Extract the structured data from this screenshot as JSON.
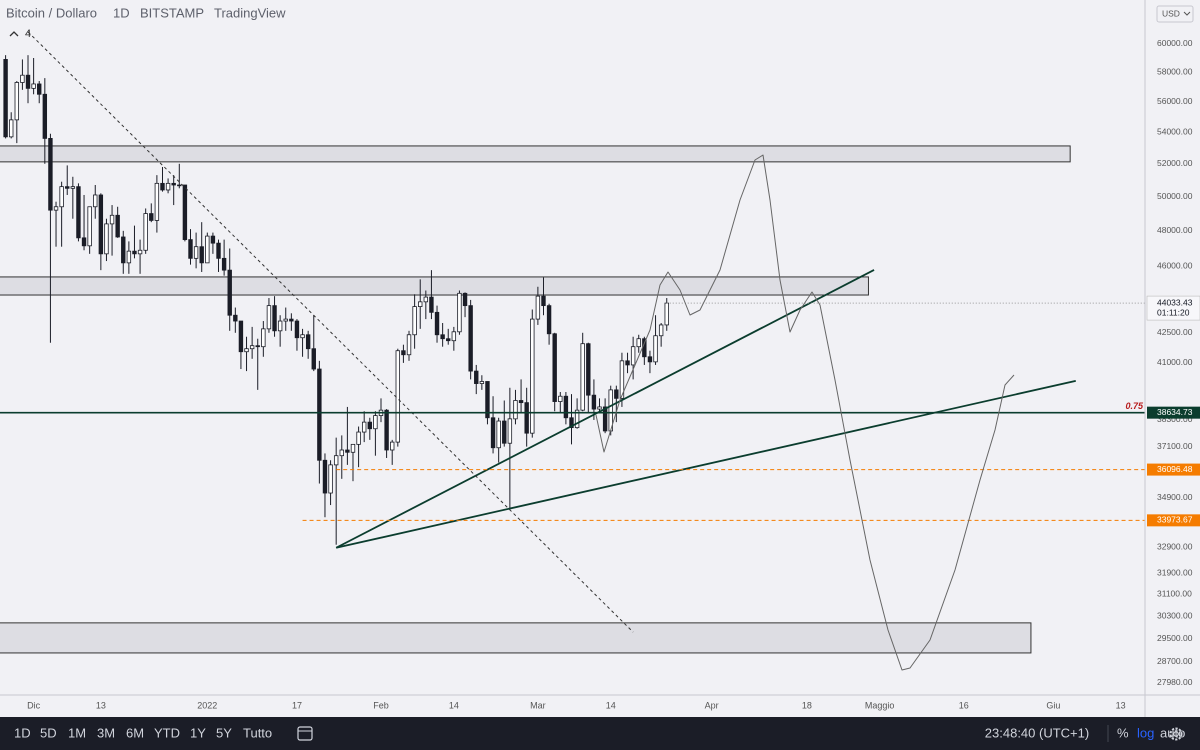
{
  "chart_data": {
    "type": "candlestick",
    "title": "Bitcoin / Dollaro",
    "interval": "1D",
    "exchange": "BITSTAMP",
    "source": "TradingView",
    "collapsed_indicators": "4",
    "y_unit": "USD",
    "log": true,
    "grid": false,
    "up_color": "#ffffff",
    "down_color": "#1b1d27",
    "wick_color": "#1b1d27",
    "xlim": [
      "2021-11-25",
      "2022-06-17"
    ],
    "ylim": [
      27580,
      63230
    ],
    "xticks": [
      {
        "value": "2021-12-01",
        "label": "Dic"
      },
      {
        "value": "2021-12-13",
        "label": "13"
      },
      {
        "value": "2022-01-01",
        "label": "2022"
      },
      {
        "value": "2022-01-17",
        "label": "17"
      },
      {
        "value": "2022-02-01",
        "label": "Feb"
      },
      {
        "value": "2022-02-14",
        "label": "14"
      },
      {
        "value": "2022-03-01",
        "label": "Mar"
      },
      {
        "value": "2022-03-14",
        "label": "14"
      },
      {
        "value": "2022-04-01",
        "label": "Apr"
      },
      {
        "value": "2022-04-18",
        "label": "18"
      },
      {
        "value": "2022-05-01",
        "label": "Maggio"
      },
      {
        "value": "2022-05-16",
        "label": "16"
      },
      {
        "value": "2022-06-01",
        "label": "Giu"
      },
      {
        "value": "2022-06-13",
        "label": "13"
      }
    ],
    "yticks": [
      {
        "value": 60000,
        "label": "60000.00"
      },
      {
        "value": 58000,
        "label": "58000.00"
      },
      {
        "value": 56000,
        "label": "56000.00"
      },
      {
        "value": 54000,
        "label": "54000.00"
      },
      {
        "value": 52000,
        "label": "52000.00"
      },
      {
        "value": 50000,
        "label": "50000.00"
      },
      {
        "value": 48000,
        "label": "48000.00"
      },
      {
        "value": 46000,
        "label": "46000.00"
      },
      {
        "value": 42500,
        "label": "42500.00"
      },
      {
        "value": 41000,
        "label": "41000.00"
      },
      {
        "value": 38300,
        "label": "38300.00"
      },
      {
        "value": 37100,
        "label": "37100.00"
      },
      {
        "value": 34900,
        "label": "34900.00"
      },
      {
        "value": 32900,
        "label": "32900.00"
      },
      {
        "value": 31900,
        "label": "31900.00"
      },
      {
        "value": 31100,
        "label": "31100.00"
      },
      {
        "value": 30300,
        "label": "30300.00"
      },
      {
        "value": 29500,
        "label": "29500.00"
      },
      {
        "value": 28700,
        "label": "28700.00"
      },
      {
        "value": 27980,
        "label": "27980.00"
      }
    ],
    "x": [
      "2021-11-26",
      "2021-11-27",
      "2021-11-28",
      "2021-11-29",
      "2021-11-30",
      "2021-12-01",
      "2021-12-02",
      "2021-12-03",
      "2021-12-04",
      "2021-12-05",
      "2021-12-06",
      "2021-12-07",
      "2021-12-08",
      "2021-12-09",
      "2021-12-10",
      "2021-12-11",
      "2021-12-12",
      "2021-12-13",
      "2021-12-14",
      "2021-12-15",
      "2021-12-16",
      "2021-12-17",
      "2021-12-18",
      "2021-12-19",
      "2021-12-20",
      "2021-12-21",
      "2021-12-22",
      "2021-12-23",
      "2021-12-24",
      "2021-12-25",
      "2021-12-26",
      "2021-12-27",
      "2021-12-28",
      "2021-12-29",
      "2021-12-30",
      "2021-12-31",
      "2022-01-01",
      "2022-01-02",
      "2022-01-03",
      "2022-01-04",
      "2022-01-05",
      "2022-01-06",
      "2022-01-07",
      "2022-01-08",
      "2022-01-09",
      "2022-01-10",
      "2022-01-11",
      "2022-01-12",
      "2022-01-13",
      "2022-01-14",
      "2022-01-15",
      "2022-01-16",
      "2022-01-17",
      "2022-01-18",
      "2022-01-19",
      "2022-01-20",
      "2022-01-21",
      "2022-01-22",
      "2022-01-23",
      "2022-01-24",
      "2022-01-25",
      "2022-01-26",
      "2022-01-27",
      "2022-01-28",
      "2022-01-29",
      "2022-01-30",
      "2022-01-31",
      "2022-02-01",
      "2022-02-02",
      "2022-02-03",
      "2022-02-04",
      "2022-02-05",
      "2022-02-06",
      "2022-02-07",
      "2022-02-08",
      "2022-02-09",
      "2022-02-10",
      "2022-02-11",
      "2022-02-12",
      "2022-02-13",
      "2022-02-14",
      "2022-02-15",
      "2022-02-16",
      "2022-02-17",
      "2022-02-18",
      "2022-02-19",
      "2022-02-20",
      "2022-02-21",
      "2022-02-22",
      "2022-02-23",
      "2022-02-24",
      "2022-02-25",
      "2022-02-26",
      "2022-02-27",
      "2022-02-28",
      "2022-03-01",
      "2022-03-02",
      "2022-03-03",
      "2022-03-04",
      "2022-03-05",
      "2022-03-06",
      "2022-03-07",
      "2022-03-08",
      "2022-03-09",
      "2022-03-10",
      "2022-03-11",
      "2022-03-12",
      "2022-03-13",
      "2022-03-14",
      "2022-03-15",
      "2022-03-16",
      "2022-03-17",
      "2022-03-18",
      "2022-03-19",
      "2022-03-20",
      "2022-03-21",
      "2022-03-22",
      "2022-03-23",
      "2022-03-24"
    ],
    "ohlc": [
      [
        58900,
        59200,
        53600,
        53700
      ],
      [
        53700,
        55300,
        53600,
        54800
      ],
      [
        54800,
        57400,
        53300,
        57300
      ],
      [
        57300,
        58900,
        56800,
        57800
      ],
      [
        57800,
        59200,
        55900,
        56900
      ],
      [
        56900,
        59000,
        56500,
        57200
      ],
      [
        57200,
        57400,
        55900,
        56500
      ],
      [
        56500,
        57600,
        52000,
        53600
      ],
      [
        53600,
        53900,
        42000,
        49200
      ],
      [
        49200,
        49700,
        47100,
        49400
      ],
      [
        49400,
        50900,
        47100,
        50600
      ],
      [
        50600,
        51900,
        50100,
        50500
      ],
      [
        50500,
        51200,
        48700,
        50600
      ],
      [
        50600,
        50800,
        47400,
        47600
      ],
      [
        47600,
        50100,
        46900,
        47150
      ],
      [
        47150,
        49400,
        46700,
        49400
      ],
      [
        49400,
        50700,
        48700,
        50100
      ],
      [
        50100,
        50200,
        45800,
        46700
      ],
      [
        46700,
        48700,
        46300,
        48400
      ],
      [
        48400,
        49500,
        46600,
        48900
      ],
      [
        48900,
        49400,
        47600,
        47650
      ],
      [
        47650,
        48000,
        45600,
        46200
      ],
      [
        46200,
        47400,
        45600,
        46850
      ],
      [
        46850,
        48300,
        46450,
        46700
      ],
      [
        46700,
        47500,
        45600,
        46900
      ],
      [
        46900,
        49300,
        46700,
        49000
      ],
      [
        49000,
        49600,
        48500,
        48600
      ],
      [
        48600,
        51300,
        47900,
        50800
      ],
      [
        50800,
        51800,
        50300,
        50400
      ],
      [
        50400,
        51100,
        50200,
        50800
      ],
      [
        50800,
        51300,
        49500,
        50700
      ],
      [
        50700,
        52000,
        50500,
        50700
      ],
      [
        50700,
        50700,
        47400,
        47500
      ],
      [
        47500,
        48100,
        46100,
        46450
      ],
      [
        46450,
        47900,
        45900,
        47100
      ],
      [
        47100,
        48500,
        45700,
        46200
      ],
      [
        46200,
        47900,
        46200,
        47700
      ],
      [
        47700,
        47900,
        46700,
        47300
      ],
      [
        47300,
        47500,
        45700,
        46450
      ],
      [
        46450,
        47500,
        45500,
        45800
      ],
      [
        45800,
        47000,
        42600,
        43400
      ],
      [
        43400,
        43800,
        42500,
        43100
      ],
      [
        43100,
        43100,
        40700,
        41550
      ],
      [
        41550,
        42300,
        40600,
        41700
      ],
      [
        41700,
        42800,
        41200,
        41850
      ],
      [
        41850,
        42200,
        39700,
        41800
      ],
      [
        41800,
        43100,
        41300,
        42700
      ],
      [
        42700,
        44300,
        42500,
        43900
      ],
      [
        43900,
        44400,
        42300,
        42600
      ],
      [
        42600,
        43400,
        41800,
        43100
      ],
      [
        43100,
        43800,
        42600,
        43200
      ],
      [
        43200,
        43500,
        42600,
        43100
      ],
      [
        43100,
        43200,
        41600,
        42250
      ],
      [
        42250,
        42700,
        41300,
        42400
      ],
      [
        42400,
        42600,
        41200,
        41700
      ],
      [
        41700,
        43400,
        40600,
        40700
      ],
      [
        40700,
        41100,
        35500,
        36500
      ],
      [
        36500,
        36800,
        34100,
        35100
      ],
      [
        35100,
        36500,
        34600,
        36300
      ],
      [
        36300,
        37500,
        33000,
        36700
      ],
      [
        36700,
        37600,
        35700,
        36950
      ],
      [
        36950,
        38900,
        36300,
        36850
      ],
      [
        36850,
        37200,
        35600,
        37200
      ],
      [
        37200,
        38000,
        36200,
        37750
      ],
      [
        37750,
        38700,
        37300,
        38200
      ],
      [
        38200,
        38400,
        37400,
        37900
      ],
      [
        37900,
        38700,
        36700,
        38500
      ],
      [
        38500,
        39300,
        38200,
        38750
      ],
      [
        38750,
        38800,
        36600,
        36950
      ],
      [
        36950,
        37400,
        36300,
        37300
      ],
      [
        37300,
        41700,
        37100,
        41600
      ],
      [
        41600,
        41900,
        41000,
        41400
      ],
      [
        41400,
        42600,
        41100,
        42400
      ],
      [
        42400,
        44500,
        41700,
        43850
      ],
      [
        43850,
        45300,
        42700,
        44100
      ],
      [
        44100,
        44700,
        43200,
        44350
      ],
      [
        44350,
        45800,
        43200,
        43550
      ],
      [
        43550,
        43900,
        42000,
        42400
      ],
      [
        42400,
        43000,
        41800,
        42200
      ],
      [
        42200,
        42700,
        41900,
        42100
      ],
      [
        42100,
        42800,
        41600,
        42550
      ],
      [
        42550,
        44700,
        42400,
        44550
      ],
      [
        44550,
        44600,
        43300,
        43900
      ],
      [
        43900,
        44200,
        40200,
        40600
      ],
      [
        40600,
        40900,
        39500,
        40000
      ],
      [
        40000,
        40400,
        39700,
        40100
      ],
      [
        40100,
        40100,
        38100,
        38400
      ],
      [
        38400,
        39400,
        36800,
        37050
      ],
      [
        37050,
        38400,
        36400,
        38250
      ],
      [
        38250,
        39200,
        37100,
        37250
      ],
      [
        37250,
        39800,
        34400,
        38350
      ],
      [
        38350,
        39700,
        38100,
        39200
      ],
      [
        39200,
        40200,
        38600,
        39100
      ],
      [
        39100,
        39800,
        37100,
        37700
      ],
      [
        37700,
        43700,
        37500,
        43200
      ],
      [
        43200,
        44900,
        42900,
        44400
      ],
      [
        44400,
        45400,
        43400,
        43900
      ],
      [
        43900,
        44000,
        41900,
        42450
      ],
      [
        42450,
        42500,
        38700,
        39150
      ],
      [
        39150,
        39600,
        38600,
        39400
      ],
      [
        39400,
        39600,
        38100,
        38400
      ],
      [
        38400,
        39500,
        37200,
        37950
      ],
      [
        37950,
        39300,
        37900,
        38750
      ],
      [
        38750,
        42500,
        38700,
        41950
      ],
      [
        41950,
        42000,
        38600,
        39450
      ],
      [
        39450,
        40200,
        38300,
        38800
      ],
      [
        38800,
        39300,
        38700,
        38900
      ],
      [
        38900,
        39300,
        37700,
        37800
      ],
      [
        37800,
        39900,
        37600,
        39700
      ],
      [
        39700,
        39900,
        38200,
        39300
      ],
      [
        39300,
        41500,
        38900,
        41100
      ],
      [
        41100,
        41500,
        40500,
        40900
      ],
      [
        40900,
        42300,
        40200,
        41800
      ],
      [
        41800,
        42400,
        41500,
        42200
      ],
      [
        42200,
        42300,
        40900,
        41300
      ],
      [
        41300,
        41600,
        40500,
        41050
      ],
      [
        41050,
        43400,
        40900,
        42350
      ],
      [
        42350,
        43000,
        41800,
        42900
      ],
      [
        42900,
        44300,
        42600,
        44033.43
      ]
    ],
    "zones": [
      {
        "x": [
          "2021-11-20",
          "2022-06-04"
        ],
        "price": [
          52120,
          53120
        ]
      },
      {
        "x": [
          "2021-11-20",
          "2022-04-29"
        ],
        "price": [
          44460,
          45430
        ]
      },
      {
        "x": [
          "2021-11-20",
          "2022-05-28"
        ],
        "price": [
          29000,
          30060
        ]
      }
    ],
    "trendlines": [
      {
        "x": [
          "2022-01-24",
          "2022-04-30"
        ],
        "y": [
          32880,
          45810
        ],
        "color": "#0b3d2e",
        "dash": false
      },
      {
        "x": [
          "2022-01-24",
          "2022-06-05"
        ],
        "y": [
          32880,
          40130
        ],
        "color": "#0b3d2e",
        "dash": false
      },
      {
        "x": [
          "2021-11-30",
          "2022-03-18"
        ],
        "y": [
          60870,
          29730
        ],
        "color": "#333333",
        "dash": true
      }
    ],
    "hlines": [
      {
        "value": 38634.73,
        "from": "2021-11-25",
        "color": "#0b3d2e",
        "dash": false,
        "tag": "0.75"
      },
      {
        "value": 36096.48,
        "from": "2022-01-24",
        "color": "#f57c00",
        "dash": true
      },
      {
        "value": 33973.67,
        "from": "2022-01-18",
        "color": "#f57c00",
        "dash": true
      }
    ],
    "last_price": {
      "value": 44033.43,
      "countdown": "01:11:20"
    }
  },
  "toolbar": {
    "ranges": [
      "1D",
      "5D",
      "1M",
      "3M",
      "6M",
      "YTD",
      "1Y",
      "5Y",
      "Tutto"
    ],
    "clock": "23:48:40 (UTC+1)",
    "options": [
      "%",
      "log",
      "auto"
    ]
  }
}
